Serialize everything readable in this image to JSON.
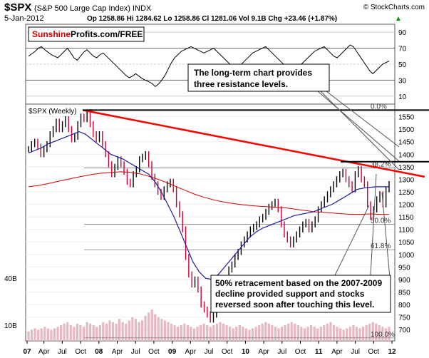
{
  "header": {
    "symbol": "$SPX",
    "name": "(S&P 500 Large Cap Index) INDX",
    "date": "5-Jan-2012",
    "ohlc": "Op 1258.86  Hi 1284.62  Lo 1258.86  Cl 1281.06  Vol 9.1B  Chg +23.46 (+1.87%)",
    "trend_symbol": "▲",
    "credit": "© StockCharts.com"
  },
  "brand": {
    "part1": "Sunshine",
    "part2": "Profits.com/FREE"
  },
  "price_label": "$SPX (Weekly)",
  "annotations": {
    "top": [
      "The long-term chart provides",
      "three resistance levels."
    ],
    "bottom": [
      "50% retracement based on the 2007-2009",
      "decline provided support and stocks",
      "reversed soon after touching this level."
    ]
  },
  "fib_labels": [
    "0.0%",
    "38.2%",
    "50.0%",
    "61.8%",
    "100.0%"
  ],
  "colors": {
    "resistance": "#ff0000",
    "ma_fast": "#1c1ca0",
    "ma_slow": "#d40000",
    "up_bar": "#000000",
    "down_bar": "#cc0033",
    "volume": "#e8b8c0",
    "rsi_line": "#000000",
    "rsi_fill_low": "#8b4a4a"
  },
  "chart_data": {
    "type": "line",
    "x_ticks": [
      "07",
      "Apr",
      "Jul",
      "Oct",
      "08",
      "Apr",
      "Jul",
      "Oct",
      "09",
      "Apr",
      "Jul",
      "Oct",
      "10",
      "Apr",
      "Jul",
      "Oct",
      "11",
      "Apr",
      "Jul",
      "Oct",
      "12"
    ],
    "rsi": {
      "ticks": [
        10,
        30,
        50,
        70,
        90
      ],
      "ylim": [
        0,
        100
      ],
      "values": [
        60,
        63,
        66,
        70,
        72,
        68,
        65,
        62,
        60,
        58,
        62,
        66,
        70,
        64,
        58,
        55,
        60,
        65,
        68,
        64,
        60,
        58,
        62,
        64,
        60,
        56,
        52,
        48,
        44,
        40,
        36,
        33,
        35,
        38,
        35,
        32,
        30,
        28,
        26,
        22,
        25,
        30,
        36,
        44,
        52,
        58,
        62,
        66,
        68,
        70,
        72,
        70,
        68,
        66,
        64,
        66,
        68,
        70,
        66,
        62,
        58,
        54,
        50,
        46,
        44,
        48,
        52,
        56,
        60,
        64,
        66,
        68,
        70,
        72,
        68,
        64,
        60,
        56,
        52,
        48,
        44,
        40,
        42,
        46,
        50,
        54,
        58,
        62,
        66,
        68,
        70,
        72,
        68,
        64,
        60,
        58,
        62,
        66,
        70,
        74,
        72,
        66,
        60,
        54,
        48,
        42,
        38,
        42,
        46,
        50,
        52,
        54
      ]
    },
    "price": {
      "ylim": [
        655,
        1600
      ],
      "ticks": [
        700,
        750,
        800,
        850,
        900,
        950,
        1000,
        1050,
        1100,
        1150,
        1200,
        1250,
        1300,
        1350,
        1400,
        1450,
        1500,
        1550
      ],
      "resistance_lines": [
        1576,
        1370
      ],
      "trendline": {
        "from_price": 1576,
        "to_price": 1310
      },
      "fib_levels": [
        1576,
        1345,
        1120,
        1019,
        667
      ],
      "weekly_close": [
        1420,
        1440,
        1450,
        1430,
        1400,
        1420,
        1440,
        1480,
        1500,
        1530,
        1500,
        1520,
        1540,
        1500,
        1460,
        1470,
        1520,
        1550,
        1540,
        1560,
        1520,
        1480,
        1460,
        1480,
        1440,
        1400,
        1360,
        1320,
        1350,
        1380,
        1360,
        1330,
        1290,
        1280,
        1320,
        1340,
        1380,
        1390,
        1400,
        1360,
        1310,
        1280,
        1250,
        1230,
        1260,
        1280,
        1290,
        1260,
        1200,
        1160,
        1100,
        990,
        920,
        880,
        900,
        860,
        800,
        780,
        760,
        740,
        760,
        800,
        830,
        850,
        900,
        940,
        960,
        990,
        1010,
        1040,
        1060,
        1080,
        1100,
        1110,
        1120,
        1140,
        1150,
        1170,
        1190,
        1200,
        1210,
        1180,
        1120,
        1080,
        1060,
        1040,
        1060,
        1080,
        1100,
        1120,
        1130,
        1100,
        1120,
        1140,
        1180,
        1200,
        1220,
        1240,
        1260,
        1280,
        1300,
        1320,
        1330,
        1300,
        1280,
        1260,
        1320,
        1340,
        1300,
        1280,
        1200,
        1150,
        1180,
        1220,
        1240,
        1200,
        1260,
        1281
      ],
      "ma_fast": [
        1405,
        1415,
        1425,
        1440,
        1450,
        1460,
        1470,
        1480,
        1490,
        1480,
        1460,
        1440,
        1420,
        1400,
        1390,
        1380,
        1365,
        1350,
        1335,
        1320,
        1290,
        1250,
        1200,
        1150,
        1090,
        1030,
        970,
        930,
        905,
        900,
        920,
        950,
        980,
        1010,
        1040,
        1070,
        1090,
        1105,
        1115,
        1125,
        1135,
        1145,
        1155,
        1160,
        1165,
        1170,
        1180,
        1190,
        1200,
        1215,
        1230,
        1245,
        1260,
        1265,
        1268,
        1270,
        1270,
        1270
      ],
      "ma_slow": [
        1270,
        1275,
        1282,
        1290,
        1298,
        1306,
        1313,
        1320,
        1325,
        1328,
        1330,
        1328,
        1322,
        1312,
        1300,
        1286,
        1270,
        1255,
        1240,
        1228,
        1218,
        1210,
        1204,
        1199,
        1195,
        1192,
        1190,
        1188,
        1185,
        1180,
        1175,
        1170,
        1168,
        1165,
        1162,
        1160,
        1160,
        1162,
        1160,
        1160
      ]
    },
    "volume": {
      "ylim": [
        0,
        40
      ],
      "ticks": [
        "10B",
        "40B"
      ],
      "values": [
        6,
        7,
        8,
        7,
        8,
        9,
        8,
        7,
        8,
        9,
        10,
        11,
        12,
        10,
        9,
        11,
        10,
        9,
        12,
        11,
        10,
        9,
        10,
        12,
        11,
        13,
        12,
        11,
        14,
        12,
        11,
        13,
        15,
        14,
        12,
        13,
        16,
        18,
        20,
        17,
        15,
        14,
        13,
        12,
        11,
        10,
        9,
        10,
        11,
        10,
        9,
        8,
        9,
        10,
        11,
        10,
        9,
        10,
        11,
        12,
        11,
        10,
        9,
        8,
        9,
        10,
        9,
        8,
        7,
        8,
        9,
        10,
        11,
        12,
        11,
        10,
        9,
        8,
        9,
        10,
        11,
        12,
        11,
        10,
        9,
        8,
        9,
        10,
        9,
        8,
        9,
        10,
        11,
        12,
        10,
        9,
        8,
        7,
        8,
        9,
        10,
        9,
        8,
        9,
        10,
        11,
        12,
        11,
        10,
        9,
        8,
        9
      ]
    }
  }
}
